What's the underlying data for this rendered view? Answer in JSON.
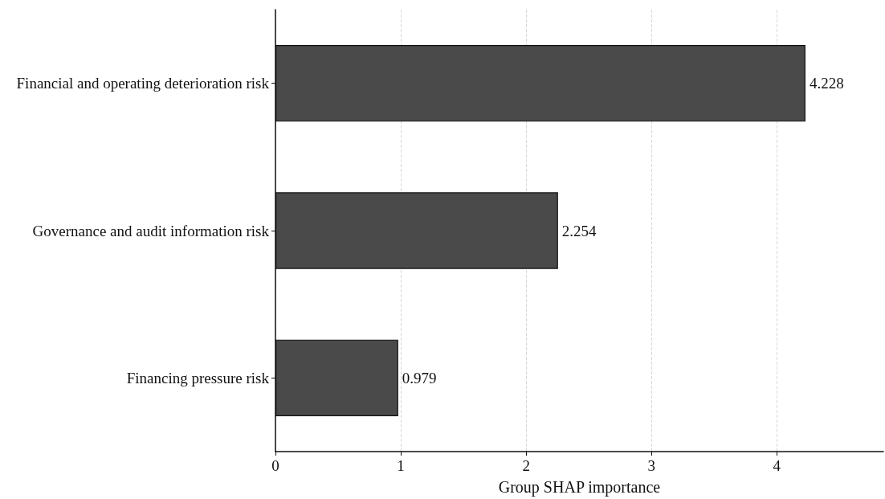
{
  "chart_data": {
    "type": "bar",
    "orientation": "horizontal",
    "xlabel": "Group SHAP importance",
    "categories": [
      "Financial and operating deterioration risk",
      "Governance and audit information risk",
      "Financing pressure risk"
    ],
    "values": [
      4.228,
      2.254,
      0.979
    ],
    "color": "#4a4a4a",
    "xlim": [
      0,
      4.85
    ],
    "xticks": [
      0,
      1,
      2,
      3,
      4
    ],
    "grid": "x",
    "data_labels": true
  }
}
